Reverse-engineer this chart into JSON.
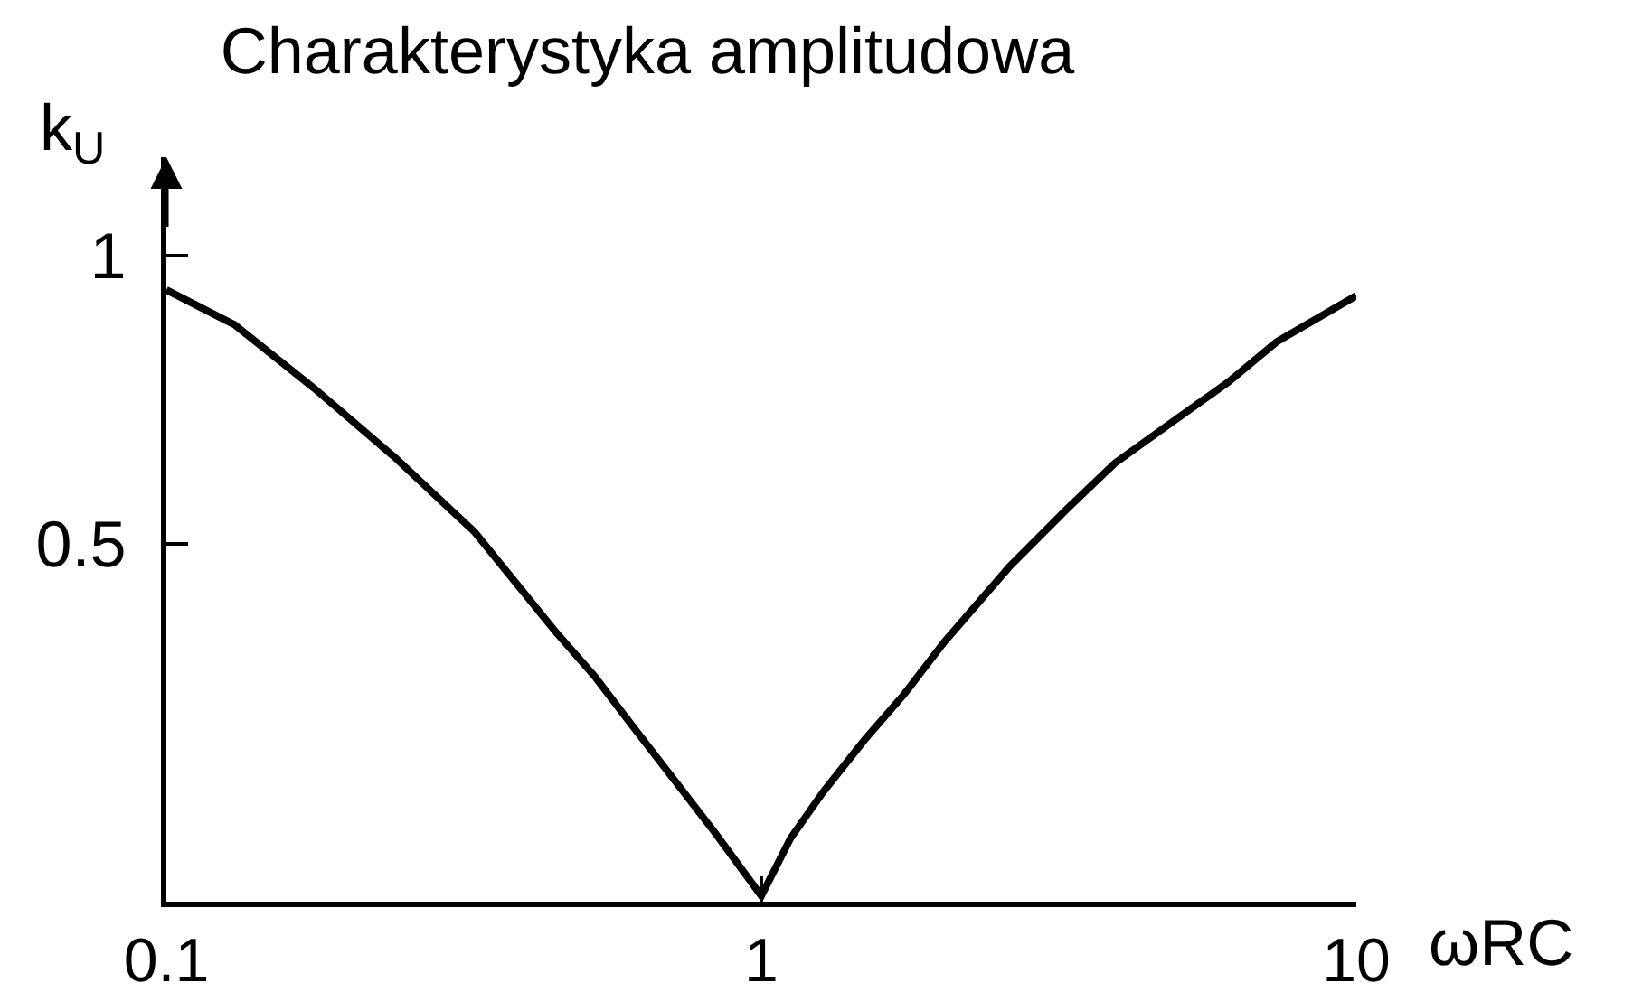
{
  "chart_data": {
    "type": "line",
    "title": "Charakterystyka amplitudowa",
    "xlabel": "ωRC",
    "ylabel": "k$_{U}$",
    "x": [
      0.1,
      0.13,
      0.177,
      0.242,
      0.33,
      0.449,
      0.525,
      0.612,
      0.715,
      0.835,
      1,
      1.12,
      1.27,
      1.49,
      1.74,
      2.03,
      2.61,
      3.26,
      3.93,
      4.89,
      6.09,
      7.35,
      10
    ],
    "series": [
      {
        "color": "#000000",
        "values": [
          0.94,
          0.88,
          0.77,
          0.65,
          0.52,
          0.35,
          0.27,
          0.18,
          0.09,
          0.0,
          -0.11,
          -0.01,
          0.07,
          0.16,
          0.24,
          0.33,
          0.46,
          0.56,
          0.64,
          0.71,
          0.78,
          0.85,
          0.93
        ]
      }
    ],
    "log": "x",
    "xlim": [
      0.1,
      10
    ],
    "xticks": [
      0.1,
      1,
      10
    ],
    "ylim": [
      -0.12,
      1.17
    ],
    "yticks": [
      0.5,
      1
    ],
    "line_style": "solid"
  }
}
